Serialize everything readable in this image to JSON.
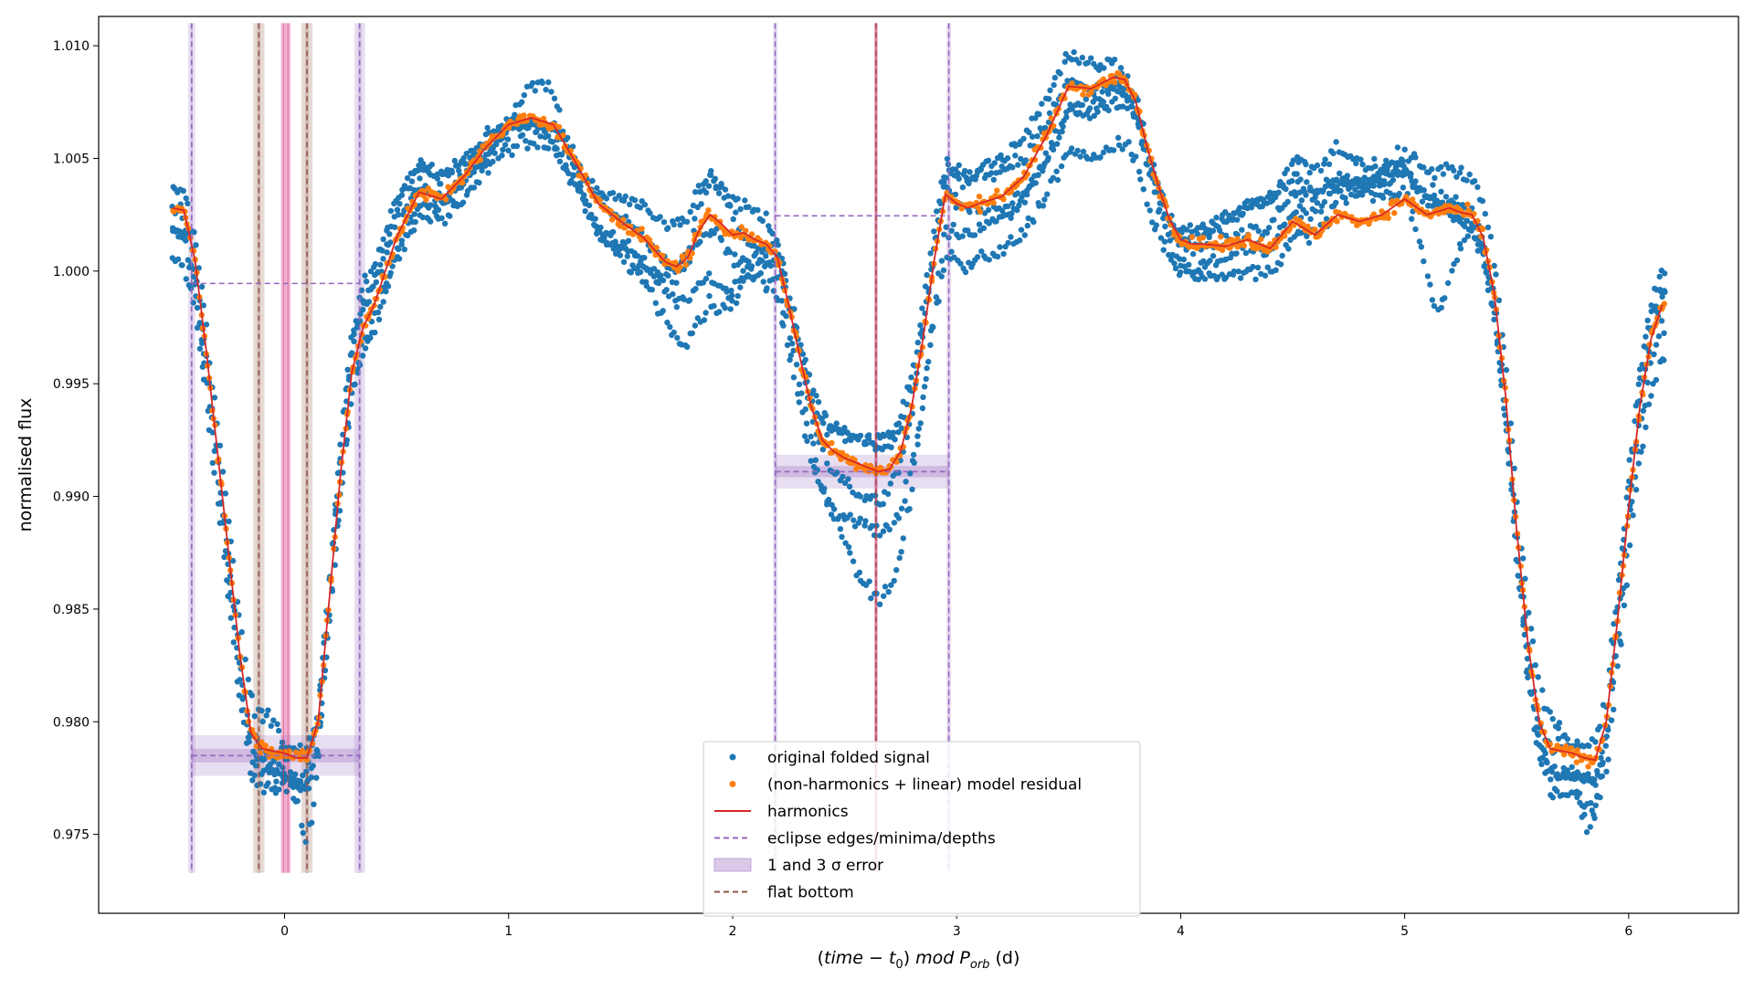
{
  "chart_data": {
    "type": "scatter",
    "title": "",
    "xlabel": "(time − t₀) mod P_orb (d)",
    "xlabel_parts": {
      "open": "(",
      "time": "time",
      "minus": " − ",
      "t": "t",
      "zero": "0",
      "close": ")",
      "mod": " mod ",
      "P": "P",
      "orb": "orb",
      "unit": " (d)"
    },
    "ylabel": "normalised flux",
    "xlim": [
      -0.83,
      6.49
    ],
    "ylim": [
      0.9715,
      1.0113
    ],
    "xticks": [
      0,
      1,
      2,
      3,
      4,
      5,
      6
    ],
    "xtick_labels": [
      "0",
      "1",
      "2",
      "3",
      "4",
      "5",
      "6"
    ],
    "yticks": [
      0.975,
      0.98,
      0.985,
      0.99,
      0.995,
      1.0,
      1.005,
      1.01
    ],
    "ytick_labels": [
      "0.975",
      "0.980",
      "0.985",
      "0.990",
      "0.995",
      "1.000",
      "1.005",
      "1.010"
    ],
    "grid": false,
    "legend_position": "bottom-center",
    "colors": {
      "original": "#1f77b4",
      "residual": "#ff7f0e",
      "harmonics": "#d62728",
      "edges": "#9467bd",
      "flat_bottom": "#8c564b",
      "minimum": "#e377c2"
    },
    "legend": [
      {
        "label": "original folded signal",
        "kind": "dot",
        "color": "#1f77b4"
      },
      {
        "label": "(non-harmonics + linear) model residual",
        "kind": "dot",
        "color": "#ff7f0e"
      },
      {
        "label": "harmonics",
        "kind": "line",
        "color": "#d62728"
      },
      {
        "label": "eclipse edges/minima/depths",
        "kind": "dashed",
        "color": "#9467bd"
      },
      {
        "label": "1 and 3 σ error",
        "kind": "patch",
        "color": "#9467bd"
      },
      {
        "label": "flat bottom",
        "kind": "dashed",
        "color": "#8c564b"
      }
    ],
    "series": [
      {
        "name": "harmonics",
        "x": [
          -0.5,
          -0.45,
          -0.4,
          -0.35,
          -0.3,
          -0.25,
          -0.2,
          -0.15,
          -0.1,
          -0.05,
          0,
          0.05,
          0.1,
          0.15,
          0.2,
          0.25,
          0.3,
          0.35,
          0.4,
          0.5,
          0.6,
          0.7,
          0.8,
          0.9,
          1.0,
          1.1,
          1.2,
          1.3,
          1.4,
          1.5,
          1.6,
          1.7,
          1.75,
          1.8,
          1.85,
          1.9,
          1.95,
          2.0,
          2.05,
          2.1,
          2.15,
          2.2,
          2.25,
          2.3,
          2.35,
          2.4,
          2.45,
          2.5,
          2.55,
          2.6,
          2.65,
          2.7,
          2.75,
          2.8,
          2.85,
          2.9,
          2.95,
          3.0,
          3.05,
          3.1,
          3.2,
          3.3,
          3.4,
          3.5,
          3.6,
          3.7,
          3.75,
          3.8,
          3.85,
          3.9,
          3.95,
          4.0,
          4.05,
          4.1,
          4.2,
          4.3,
          4.4,
          4.5,
          4.6,
          4.7,
          4.8,
          4.9,
          5.0,
          5.1,
          5.2,
          5.25,
          5.3,
          5.35,
          5.4,
          5.45,
          5.5,
          5.55,
          5.6,
          5.65,
          5.7,
          5.75,
          5.8,
          5.85,
          5.9,
          5.95,
          6.0,
          6.05,
          6.1,
          6.15
        ],
        "y": [
          1.0028,
          1.0027,
          1.0005,
          0.9965,
          0.992,
          0.9875,
          0.983,
          0.9795,
          0.9788,
          0.9787,
          0.9786,
          0.9784,
          0.9784,
          0.98,
          0.9855,
          0.991,
          0.9955,
          0.9975,
          0.9985,
          1.0015,
          1.0035,
          1.0032,
          1.0042,
          1.0055,
          1.0065,
          1.0068,
          1.0065,
          1.0048,
          1.003,
          1.0022,
          1.0015,
          1.0004,
          1.0002,
          1.0006,
          1.0018,
          1.0025,
          1.0021,
          1.0016,
          1.0017,
          1.0014,
          1.0012,
          1.0006,
          0.9985,
          0.9962,
          0.994,
          0.9925,
          0.992,
          0.9917,
          0.9915,
          0.9913,
          0.9911,
          0.9912,
          0.992,
          0.994,
          0.997,
          1.0005,
          1.0034,
          1.003,
          1.0028,
          1.003,
          1.0033,
          1.0042,
          1.006,
          1.0082,
          1.0081,
          1.0086,
          1.0085,
          1.0075,
          1.0055,
          1.0038,
          1.0023,
          1.0014,
          1.0012,
          1.0012,
          1.0011,
          1.0014,
          1.001,
          1.0022,
          1.0016,
          1.0025,
          1.0022,
          1.0025,
          1.0032,
          1.0025,
          1.0028,
          1.0026,
          1.0025,
          1.0015,
          0.999,
          0.9945,
          0.9885,
          0.9835,
          0.98,
          0.9788,
          0.9787,
          0.9786,
          0.9784,
          0.9783,
          0.98,
          0.9845,
          0.9895,
          0.994,
          0.997,
          0.9985
        ]
      },
      {
        "name": "original folded signal"
      },
      {
        "name": "(non-harmonics + linear) model residual"
      }
    ],
    "eclipses": [
      {
        "edges": [
          -0.415,
          0.335
        ],
        "edge_err": [
          0.016,
          0.024
        ],
        "depth_level": 0.9785,
        "depth_err": 0.0003,
        "continuum": 0.99945,
        "flat_bottom": [
          -0.115,
          0.1
        ],
        "flat_bottom_err": 0.025,
        "minima": [
          -0.005,
          0.015
        ],
        "minima_err": 0.012
      },
      {
        "edges": [
          2.19,
          2.965
        ],
        "edge_err": [
          0.009,
          0.01
        ],
        "depth_level": 0.9911,
        "depth_err": 0.00025,
        "continuum": 1.00245,
        "flat_bottom": [
          2.64
        ],
        "flat_bottom_err": 0.006,
        "minima": [
          2.64
        ],
        "minima_err": 0.008
      }
    ],
    "shade_range": [
      0.9733,
      1.011
    ]
  }
}
